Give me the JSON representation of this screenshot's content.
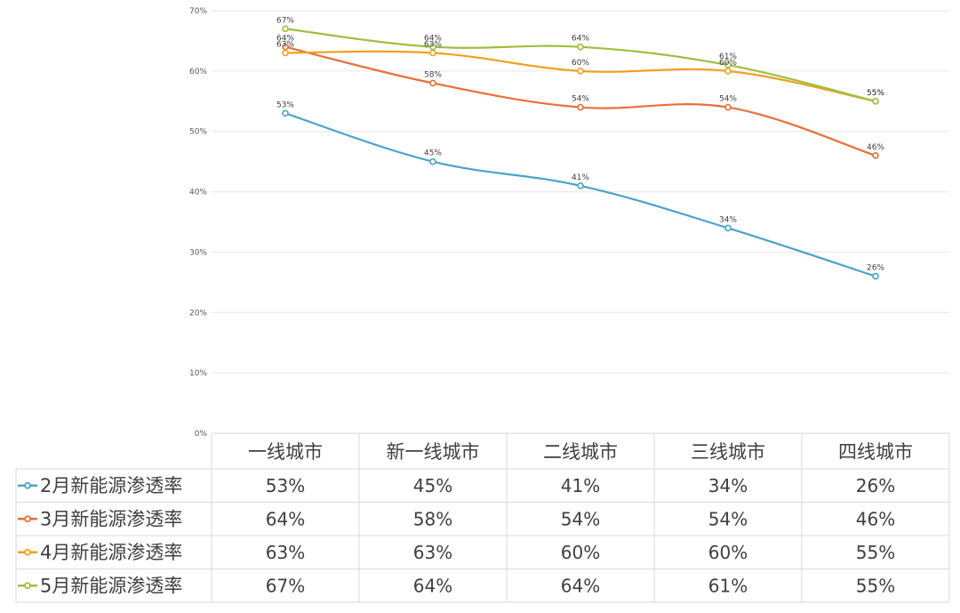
{
  "chart_data": {
    "type": "line",
    "categories": [
      "一线城市",
      "新一线城市",
      "二线城市",
      "三线城市",
      "四线城市"
    ],
    "ylim": [
      0,
      70
    ],
    "y_ticks": [
      "0%",
      "10%",
      "20%",
      "30%",
      "40%",
      "50%",
      "60%",
      "70%"
    ],
    "grid": true,
    "legend": "data-table-left",
    "series": [
      {
        "name": "2月新能源渗透率",
        "color": "#4AA3C8",
        "values": [
          53,
          45,
          41,
          34,
          26
        ],
        "labels": [
          "53%",
          "45%",
          "41%",
          "34%",
          "26%"
        ]
      },
      {
        "name": "3月新能源渗透率",
        "color": "#E8703A",
        "values": [
          64,
          58,
          54,
          54,
          46
        ],
        "labels": [
          "64%",
          "58%",
          "54%",
          "54%",
          "46%"
        ]
      },
      {
        "name": "4月新能源渗透率",
        "color": "#F2A01E",
        "values": [
          63,
          63,
          60,
          60,
          55
        ],
        "labels": [
          "63%",
          "63%",
          "60%",
          "60%",
          "55%"
        ]
      },
      {
        "name": "5月新能源渗透率",
        "color": "#9DC040",
        "values": [
          67,
          64,
          64,
          61,
          55
        ],
        "labels": [
          "67%",
          "64%",
          "64%",
          "61%",
          "55%"
        ]
      }
    ]
  }
}
